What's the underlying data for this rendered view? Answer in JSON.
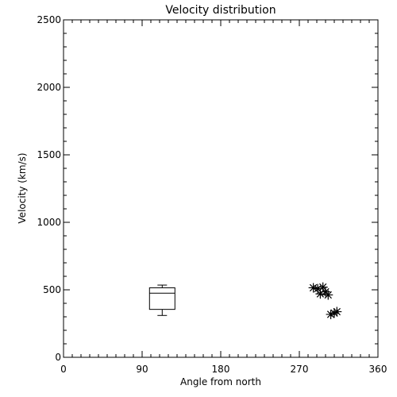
{
  "chart_data": {
    "type": "scatter",
    "title": "Velocity distribution",
    "xlabel": "Angle from north",
    "ylabel": "Velocity (km/s)",
    "xlim": [
      0,
      360
    ],
    "ylim": [
      0,
      2500
    ],
    "x_ticks": [
      0,
      90,
      180,
      270,
      360
    ],
    "y_ticks": [
      0,
      500,
      1000,
      1500,
      2000,
      2500
    ],
    "x_minor_step": 10,
    "y_minor_step": 100,
    "grid": false,
    "legend": "none",
    "color": "#000000",
    "boxplot": {
      "x": 113,
      "whisker_low": 310,
      "q1": 355,
      "median": 475,
      "q3": 515,
      "whisker_high": 535
    },
    "points": [
      {
        "x": 286,
        "y": 515
      },
      {
        "x": 291,
        "y": 508
      },
      {
        "x": 294,
        "y": 470
      },
      {
        "x": 297,
        "y": 520
      },
      {
        "x": 300,
        "y": 485
      },
      {
        "x": 303,
        "y": 462
      },
      {
        "x": 306,
        "y": 318
      },
      {
        "x": 310,
        "y": 328
      },
      {
        "x": 313,
        "y": 338
      }
    ]
  }
}
